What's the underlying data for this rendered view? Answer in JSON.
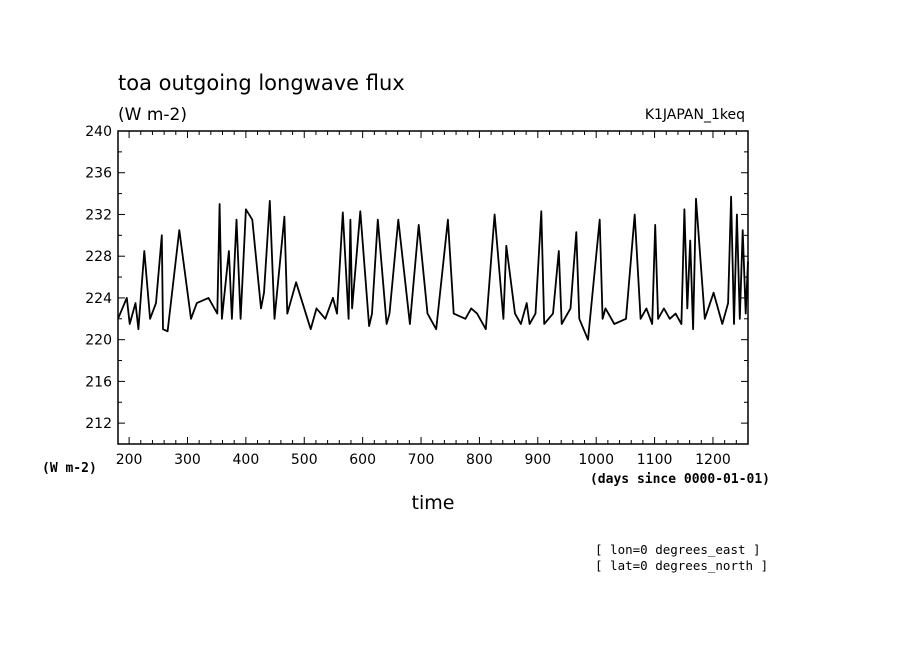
{
  "chart_data": {
    "type": "line",
    "title": "toa outgoing longwave flux",
    "units": "(W m-2)",
    "run_label": "K1JAPAN_1keq",
    "ylabel_left": "(W m-2)",
    "xlabel": "time",
    "xunits": "(days since 0000-01-01)",
    "xlim": [
      181,
      1260
    ],
    "ylim": [
      210,
      240
    ],
    "x_ticks": [
      200,
      300,
      400,
      500,
      600,
      700,
      800,
      900,
      1000,
      1100,
      1200
    ],
    "x_tick_labels": [
      "200",
      "300",
      "400",
      "500",
      "600",
      "700",
      "800",
      "900",
      "1000",
      "1100",
      "1200"
    ],
    "y_ticks": [
      212,
      216,
      220,
      224,
      228,
      232,
      236,
      240
    ],
    "y_tick_labels": [
      "212",
      "216",
      "220",
      "224",
      "228",
      "232",
      "236",
      "240"
    ],
    "grid": false,
    "notes": [
      "[ lon=0 degrees_east ]",
      "[ lat=0 degrees_north ]"
    ],
    "series": [
      {
        "color": "#000000",
        "x": [
          181,
          196,
          201,
          211,
          216,
          226,
          236,
          246,
          256,
          258,
          266,
          286,
          306,
          316,
          336,
          351,
          355,
          359,
          371,
          376,
          384,
          391,
          400,
          411,
          426,
          431,
          441,
          449,
          466,
          471,
          486,
          511,
          521,
          536,
          549,
          556,
          566,
          576,
          579,
          582,
          596,
          611,
          616,
          626,
          641,
          646,
          661,
          681,
          696,
          711,
          726,
          746,
          756,
          776,
          786,
          796,
          811,
          826,
          841,
          846,
          861,
          871,
          881,
          886,
          896,
          906,
          911,
          926,
          936,
          941,
          956,
          966,
          971,
          986,
          1006,
          1011,
          1016,
          1031,
          1051,
          1066,
          1076,
          1086,
          1096,
          1101,
          1106,
          1116,
          1126,
          1136,
          1146,
          1151,
          1156,
          1161,
          1166,
          1171,
          1186,
          1201,
          1216,
          1226,
          1231,
          1236,
          1241,
          1246,
          1251,
          1256,
          1260
        ],
        "values": [
          222,
          224,
          221.5,
          223.5,
          221,
          228.5,
          222,
          223.5,
          230,
          221,
          220.8,
          230.5,
          222,
          223.5,
          224,
          222.5,
          233,
          222,
          228.5,
          222,
          231.5,
          222,
          232.5,
          231.5,
          223,
          224.5,
          233.3,
          222,
          231.8,
          222.5,
          225.5,
          221,
          223,
          222,
          224,
          222.5,
          232.2,
          222,
          231.5,
          223,
          232.3,
          221.3,
          222.5,
          231.5,
          221.5,
          222.5,
          231.5,
          221.5,
          231,
          222.5,
          221,
          231.5,
          222.5,
          222,
          223,
          222.5,
          221,
          232,
          222,
          229,
          222.5,
          221.5,
          223.5,
          221.5,
          222.5,
          232.3,
          221.5,
          222.5,
          228.5,
          221.5,
          223,
          230.3,
          222,
          220,
          231.5,
          222,
          223,
          221.5,
          222,
          232,
          222,
          223,
          221.5,
          231,
          222,
          223,
          222,
          222.5,
          221.5,
          232.5,
          223,
          229.5,
          221,
          233.5,
          222,
          224.5,
          221.5,
          223.5,
          233.7,
          221.5,
          232,
          222,
          230.5,
          222.5,
          227.5
        ]
      }
    ]
  }
}
